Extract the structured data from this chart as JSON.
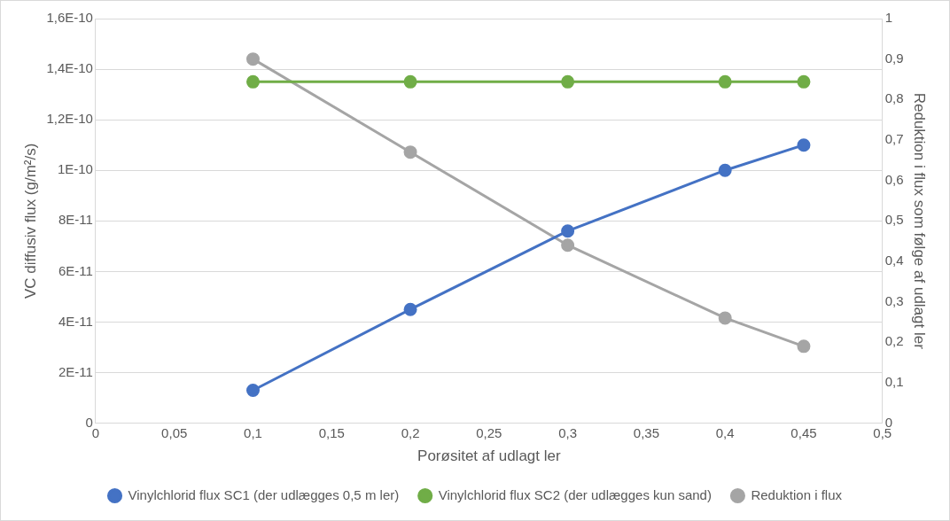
{
  "chart_data": {
    "type": "line",
    "xlabel": "Porøsitet af udlagt ler",
    "ylabel": "VC diffusiv flux (g/m²/s)",
    "y2label": "Reduktion i flux som følge af udlagt ler",
    "x": [
      0.1,
      0.2,
      0.3,
      0.4,
      0.45
    ],
    "series": [
      {
        "name": "Vinylchlorid flux SC1 (der udlægges 0,5 m ler)",
        "color": "#4472c4",
        "values": [
          1.3e-11,
          4.5e-11,
          7.6e-11,
          1e-10,
          1.1e-10
        ]
      },
      {
        "name": "Vinylchlorid flux SC2 (der udlægges kun sand)",
        "color": "#70ad47",
        "values": [
          1.35e-10,
          1.35e-10,
          1.35e-10,
          1.35e-10,
          1.35e-10
        ]
      },
      {
        "name": "Reduktion i flux",
        "color": "#a5a5a5",
        "axis": "y2",
        "values": [
          0.9,
          0.67,
          0.44,
          0.26,
          0.19
        ]
      }
    ],
    "xlim": [
      0,
      0.5
    ],
    "xticks": [
      0,
      {
        "value": 0.05,
        "label": "0,05"
      },
      {
        "value": 0.1,
        "label": "0,1"
      },
      {
        "value": 0.15,
        "label": "0,15"
      },
      {
        "value": 0.2,
        "label": "0,2"
      },
      {
        "value": 0.25,
        "label": "0,25"
      },
      {
        "value": 0.3,
        "label": "0,3"
      },
      {
        "value": 0.35,
        "label": "0,35"
      },
      {
        "value": 0.4,
        "label": "0,4"
      },
      {
        "value": 0.45,
        "label": "0,45"
      },
      {
        "value": 0.5,
        "label": "0,5"
      }
    ],
    "ylim": [
      0,
      1.6e-10
    ],
    "yticks": [
      0,
      {
        "value": 2e-11,
        "label": "2E-11"
      },
      {
        "value": 4e-11,
        "label": "4E-11"
      },
      {
        "value": 6e-11,
        "label": "6E-11"
      },
      {
        "value": 8e-11,
        "label": "8E-11"
      },
      {
        "value": 1e-10,
        "label": "1E-10"
      },
      {
        "value": 1.2e-10,
        "label": "1,2E-10"
      },
      {
        "value": 1.4e-10,
        "label": "1,4E-10"
      },
      {
        "value": 1.6e-10,
        "label": "1,6E-10"
      }
    ],
    "y2lim": [
      0,
      1
    ],
    "y2ticks": [
      0,
      {
        "value": 0.1,
        "label": "0,1"
      },
      {
        "value": 0.2,
        "label": "0,2"
      },
      {
        "value": 0.3,
        "label": "0,3"
      },
      {
        "value": 0.4,
        "label": "0,4"
      },
      {
        "value": 0.5,
        "label": "0,5"
      },
      {
        "value": 0.6,
        "label": "0,6"
      },
      {
        "value": 0.7,
        "label": "0,7"
      },
      {
        "value": 0.8,
        "label": "0,8"
      },
      {
        "value": 0.9,
        "label": "0,9"
      },
      1
    ],
    "grid": "y",
    "legend": "bottom",
    "marker": "circle",
    "line_style": "solid"
  }
}
